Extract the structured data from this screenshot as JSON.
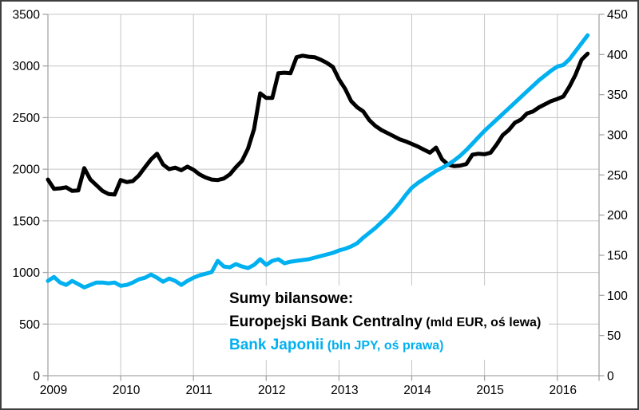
{
  "frame": {
    "background": "#ffffff",
    "border_color": "#3f3f3f"
  },
  "colors": {
    "ecb_line": "#000000",
    "boj_line": "#00b0f0",
    "gridline": "#c6c6c6",
    "axis": "#a6a6a6",
    "text": "#000000"
  },
  "legend": {
    "title": "Sumy bilansowe:",
    "ecb_name": "Europejski Bank Centralny",
    "ecb_note": " (mld EUR, oś lewa)",
    "boj_name": "Bank Japonii",
    "boj_note": " (bln JPY, oś prawa)"
  },
  "chart_data": {
    "type": "line",
    "title": "Sumy bilansowe:",
    "x_unit": "month",
    "x_start": "2009-01",
    "x_end": "2016-06",
    "x_tick_labels": [
      "2009",
      "2010",
      "2011",
      "2012",
      "2013",
      "2014",
      "2015",
      "2016"
    ],
    "grid": true,
    "left_axis": {
      "label": "mld EUR",
      "min": 0,
      "max": 3500,
      "step": 500,
      "tick_labels": [
        "0",
        "500",
        "1000",
        "1500",
        "2000",
        "2500",
        "3000",
        "3500"
      ]
    },
    "right_axis": {
      "label": "bln JPY",
      "min": 0,
      "max": 450,
      "step": 50,
      "tick_labels": [
        "0",
        "50",
        "100",
        "150",
        "200",
        "250",
        "300",
        "350",
        "400",
        "450"
      ]
    },
    "series": [
      {
        "name": "Europejski Bank Centralny",
        "unit": "mld EUR",
        "axis": "left",
        "color": "#000000",
        "values": [
          1900,
          1810,
          1815,
          1825,
          1790,
          1795,
          2010,
          1900,
          1845,
          1790,
          1760,
          1755,
          1895,
          1875,
          1885,
          1940,
          2020,
          2095,
          2150,
          2045,
          2000,
          2015,
          1990,
          2025,
          1995,
          1950,
          1920,
          1900,
          1895,
          1910,
          1950,
          2020,
          2080,
          2200,
          2390,
          2735,
          2690,
          2690,
          2930,
          2935,
          2930,
          3085,
          3100,
          3090,
          3085,
          3060,
          3030,
          2990,
          2870,
          2780,
          2660,
          2600,
          2560,
          2475,
          2420,
          2380,
          2350,
          2320,
          2290,
          2270,
          2245,
          2220,
          2190,
          2160,
          2210,
          2095,
          2045,
          2030,
          2035,
          2050,
          2140,
          2150,
          2145,
          2160,
          2240,
          2330,
          2380,
          2450,
          2480,
          2540,
          2560,
          2600,
          2630,
          2660,
          2680,
          2705,
          2800,
          2915,
          3060,
          3120
        ]
      },
      {
        "name": "Bank Japonii",
        "unit": "bln JPY",
        "axis": "right",
        "color": "#00b0f0",
        "values": [
          118,
          123,
          116,
          113,
          118,
          114,
          110,
          113,
          116,
          116,
          115,
          116,
          112,
          113,
          116,
          120,
          122,
          126,
          122,
          117,
          121,
          118,
          113,
          118,
          122,
          125,
          127,
          129,
          143,
          136,
          135,
          139,
          136,
          134,
          138,
          145,
          138,
          143,
          145,
          140,
          142,
          143,
          144,
          145,
          147,
          149,
          151,
          153,
          156,
          158,
          161,
          165,
          172,
          178,
          184,
          191,
          198,
          206,
          215,
          225,
          234,
          240,
          245,
          250,
          255,
          259,
          263,
          268,
          274,
          281,
          289,
          297,
          305,
          312,
          319,
          326,
          333,
          340,
          347,
          354,
          361,
          368,
          374,
          380,
          385,
          387,
          394,
          404,
          414,
          424
        ]
      }
    ]
  }
}
